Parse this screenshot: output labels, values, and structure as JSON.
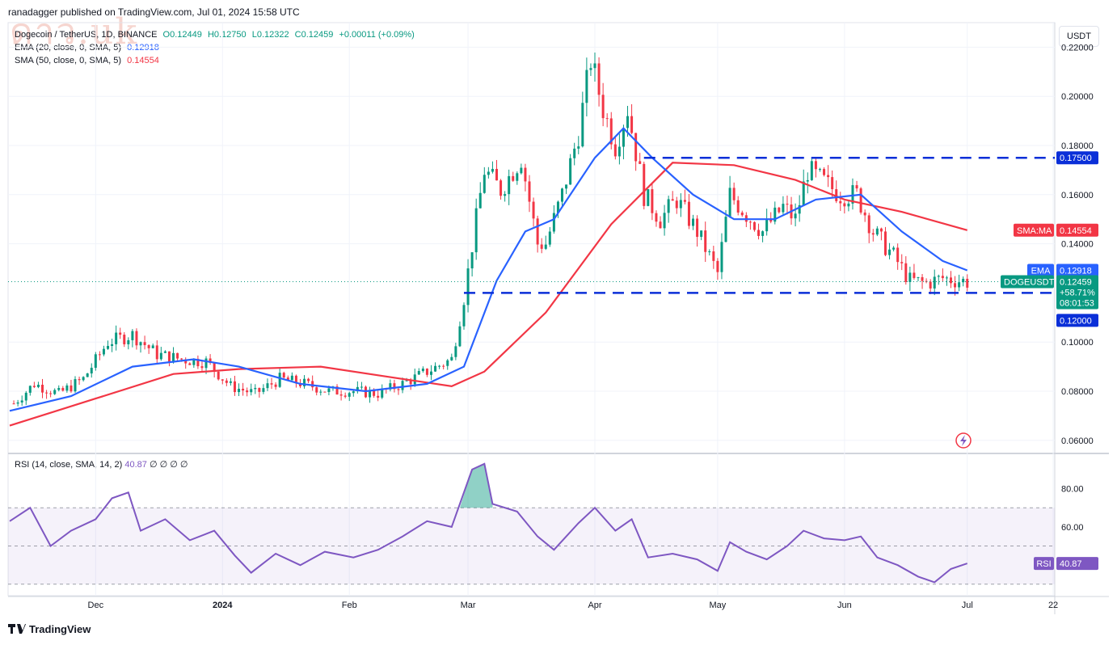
{
  "header": {
    "text": "ranadagger published on TradingView.com, Jul 01, 2024 15:58 UTC"
  },
  "watermark": {
    "text": "ดาว.uk"
  },
  "legend": {
    "symbol": "Dogecoin / TetherUS, 1D, BINANCE",
    "ohlc": {
      "o": "O0.12449",
      "h": "H0.12750",
      "l": "L0.12322",
      "c": "C0.12459",
      "chg": "+0.00011 (+0.09%)"
    },
    "ema_label": "EMA (20, close, 0, SMA, 5)",
    "ema_value": "0.12918",
    "sma_label": "SMA (50, close, 0, SMA, 5)",
    "sma_value": "0.14554"
  },
  "rsi_legend": {
    "label": "RSI (14, close, SMA, 14, 2)",
    "value": "40.87",
    "extras": "∅ ∅ ∅ ∅"
  },
  "currency": "USDT",
  "footer": {
    "brand": "TradingView"
  },
  "tags": {
    "resistance": "0.17500",
    "sma_name": "SMA:MA",
    "sma_value": "0.14554",
    "ema_name": "EMA",
    "ema_value": "0.12918",
    "symbol_name": "DOGEUSDT",
    "price": "0.12459",
    "change": "+58.71%",
    "countdown": "08:01:53",
    "support": "0.12000",
    "rsi_name": "RSI",
    "rsi_value": "40.87"
  },
  "colors": {
    "up": "#089981",
    "down": "#f23645",
    "ema": "#2962ff",
    "sma": "#f23645",
    "rsi": "#7e57c2",
    "level": "#0a2fd8"
  },
  "chart_data": [
    {
      "type": "candlestick",
      "title": "Dogecoin / TetherUS, 1D, BINANCE",
      "ylabel": "USDT",
      "ylim": [
        0.055,
        0.23
      ],
      "y_ticks": [
        "0.22000",
        "0.20000",
        "0.18000",
        "0.16000",
        "0.14000",
        "0.10000",
        "0.08000",
        "0.06000"
      ],
      "x_ticks": [
        "Dec",
        "2024",
        "Feb",
        "Mar",
        "Apr",
        "May",
        "Jun",
        "Jul",
        "22"
      ],
      "grid": true,
      "close_path": [
        [
          "2023-11-11",
          0.075
        ],
        [
          "2023-11-16",
          0.083
        ],
        [
          "2023-11-22",
          0.079
        ],
        [
          "2023-11-28",
          0.085
        ],
        [
          "2023-12-04",
          0.1
        ],
        [
          "2023-12-10",
          0.103
        ],
        [
          "2023-12-16",
          0.095
        ],
        [
          "2023-12-22",
          0.093
        ],
        [
          "2023-12-28",
          0.092
        ],
        [
          "2024-01-03",
          0.082
        ],
        [
          "2024-01-09",
          0.079
        ],
        [
          "2024-01-15",
          0.085
        ],
        [
          "2024-01-21",
          0.083
        ],
        [
          "2024-01-27",
          0.08
        ],
        [
          "2024-02-02",
          0.08
        ],
        [
          "2024-02-08",
          0.079
        ],
        [
          "2024-02-14",
          0.083
        ],
        [
          "2024-02-20",
          0.088
        ],
        [
          "2024-02-26",
          0.093
        ],
        [
          "2024-02-29",
          0.118
        ],
        [
          "2024-03-03",
          0.15
        ],
        [
          "2024-03-05",
          0.17
        ],
        [
          "2024-03-09",
          0.162
        ],
        [
          "2024-03-14",
          0.175
        ],
        [
          "2024-03-18",
          0.14
        ],
        [
          "2024-03-20",
          0.14
        ],
        [
          "2024-03-24",
          0.16
        ],
        [
          "2024-03-28",
          0.185
        ],
        [
          "2024-03-31",
          0.215
        ],
        [
          "2024-04-03",
          0.195
        ],
        [
          "2024-04-06",
          0.18
        ],
        [
          "2024-04-09",
          0.195
        ],
        [
          "2024-04-13",
          0.16
        ],
        [
          "2024-04-17",
          0.15
        ],
        [
          "2024-04-21",
          0.158
        ],
        [
          "2024-04-26",
          0.145
        ],
        [
          "2024-05-01",
          0.128
        ],
        [
          "2024-05-04",
          0.16
        ],
        [
          "2024-05-08",
          0.152
        ],
        [
          "2024-05-12",
          0.145
        ],
        [
          "2024-05-17",
          0.155
        ],
        [
          "2024-05-20",
          0.15
        ],
        [
          "2024-05-23",
          0.17
        ],
        [
          "2024-05-27",
          0.165
        ],
        [
          "2024-05-31",
          0.16
        ],
        [
          "2024-06-04",
          0.16
        ],
        [
          "2024-06-08",
          0.145
        ],
        [
          "2024-06-13",
          0.135
        ],
        [
          "2024-06-17",
          0.125
        ],
        [
          "2024-06-21",
          0.124
        ],
        [
          "2024-06-25",
          0.126
        ],
        [
          "2024-07-01",
          0.12459
        ]
      ],
      "ema20_path": [
        [
          "2023-11-10",
          0.072
        ],
        [
          "2023-11-25",
          0.078
        ],
        [
          "2023-12-10",
          0.09
        ],
        [
          "2023-12-25",
          0.093
        ],
        [
          "2024-01-05",
          0.09
        ],
        [
          "2024-01-20",
          0.083
        ],
        [
          "2024-02-05",
          0.08
        ],
        [
          "2024-02-20",
          0.083
        ],
        [
          "2024-02-29",
          0.09
        ],
        [
          "2024-03-08",
          0.125
        ],
        [
          "2024-03-15",
          0.145
        ],
        [
          "2024-03-22",
          0.15
        ],
        [
          "2024-04-01",
          0.175
        ],
        [
          "2024-04-08",
          0.187
        ],
        [
          "2024-04-15",
          0.175
        ],
        [
          "2024-04-25",
          0.16
        ],
        [
          "2024-05-05",
          0.15
        ],
        [
          "2024-05-15",
          0.15
        ],
        [
          "2024-05-25",
          0.158
        ],
        [
          "2024-06-05",
          0.16
        ],
        [
          "2024-06-15",
          0.145
        ],
        [
          "2024-06-25",
          0.133
        ],
        [
          "2024-07-01",
          0.12918
        ]
      ],
      "sma50_path": [
        [
          "2023-11-10",
          0.066
        ],
        [
          "2023-12-01",
          0.077
        ],
        [
          "2023-12-20",
          0.087
        ],
        [
          "2024-01-05",
          0.089
        ],
        [
          "2024-01-25",
          0.09
        ],
        [
          "2024-02-10",
          0.086
        ],
        [
          "2024-02-26",
          0.082
        ],
        [
          "2024-03-05",
          0.088
        ],
        [
          "2024-03-20",
          0.112
        ],
        [
          "2024-04-05",
          0.148
        ],
        [
          "2024-04-20",
          0.173
        ],
        [
          "2024-05-05",
          0.172
        ],
        [
          "2024-05-20",
          0.166
        ],
        [
          "2024-06-01",
          0.158
        ],
        [
          "2024-06-15",
          0.153
        ],
        [
          "2024-07-01",
          0.14554
        ]
      ],
      "levels": [
        {
          "value": 0.175,
          "label": "0.17500"
        },
        {
          "value": 0.12,
          "label": "0.12000"
        }
      ],
      "last_price": 0.12459
    },
    {
      "type": "line",
      "title": "RSI (14, close, SMA, 14, 2)",
      "ylim": [
        24,
        98
      ],
      "y_ticks": [
        "80.00",
        "60.00"
      ],
      "bands": {
        "upper": 70,
        "middle": 50,
        "lower": 30
      },
      "series": [
        {
          "name": "RSI",
          "values": [
            [
              "2023-11-10",
              63
            ],
            [
              "2023-11-15",
              70
            ],
            [
              "2023-11-20",
              50
            ],
            [
              "2023-11-25",
              58
            ],
            [
              "2023-12-01",
              64
            ],
            [
              "2023-12-05",
              75
            ],
            [
              "2023-12-09",
              78
            ],
            [
              "2023-12-12",
              58
            ],
            [
              "2023-12-18",
              64
            ],
            [
              "2023-12-24",
              53
            ],
            [
              "2023-12-30",
              58
            ],
            [
              "2024-01-04",
              45
            ],
            [
              "2024-01-08",
              36
            ],
            [
              "2024-01-14",
              46
            ],
            [
              "2024-01-20",
              40
            ],
            [
              "2024-01-26",
              47
            ],
            [
              "2024-02-02",
              44
            ],
            [
              "2024-02-08",
              48
            ],
            [
              "2024-02-14",
              55
            ],
            [
              "2024-02-20",
              63
            ],
            [
              "2024-02-26",
              60
            ],
            [
              "2024-03-02",
              90
            ],
            [
              "2024-03-05",
              93
            ],
            [
              "2024-03-07",
              72
            ],
            [
              "2024-03-13",
              68
            ],
            [
              "2024-03-18",
              55
            ],
            [
              "2024-03-22",
              48
            ],
            [
              "2024-03-28",
              62
            ],
            [
              "2024-04-01",
              70
            ],
            [
              "2024-04-06",
              58
            ],
            [
              "2024-04-10",
              64
            ],
            [
              "2024-04-14",
              44
            ],
            [
              "2024-04-20",
              46
            ],
            [
              "2024-04-26",
              43
            ],
            [
              "2024-05-01",
              37
            ],
            [
              "2024-05-04",
              52
            ],
            [
              "2024-05-08",
              47
            ],
            [
              "2024-05-13",
              43
            ],
            [
              "2024-05-18",
              50
            ],
            [
              "2024-05-22",
              58
            ],
            [
              "2024-05-27",
              54
            ],
            [
              "2024-06-01",
              53
            ],
            [
              "2024-06-05",
              55
            ],
            [
              "2024-06-09",
              44
            ],
            [
              "2024-06-14",
              40
            ],
            [
              "2024-06-19",
              34
            ],
            [
              "2024-06-23",
              31
            ],
            [
              "2024-06-27",
              38
            ],
            [
              "2024-07-01",
              40.87
            ]
          ]
        }
      ]
    }
  ]
}
